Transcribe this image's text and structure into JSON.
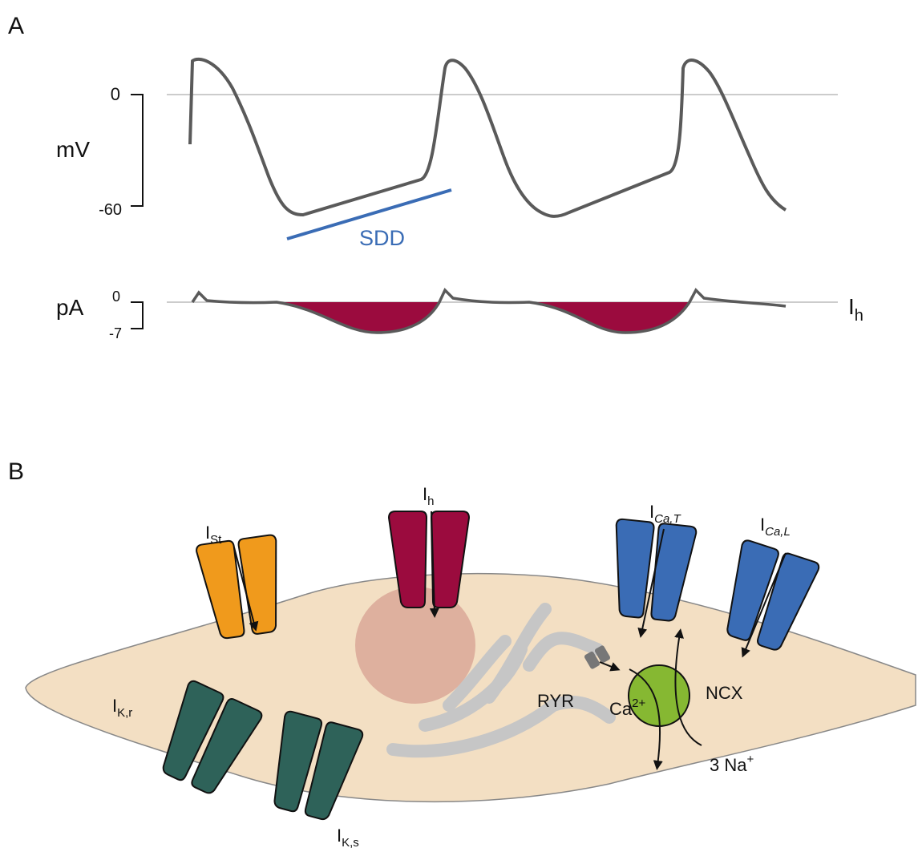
{
  "panel_a": {
    "label": "A",
    "voltage": {
      "scale_top": "0",
      "unit": "mV",
      "scale_bottom": "-60",
      "annotation": "SDD"
    },
    "current": {
      "scale_top": "0",
      "unit": "pA",
      "scale_bottom": "-7",
      "trace_label": {
        "base": "I",
        "sub": "h"
      }
    }
  },
  "panel_b": {
    "label": "B",
    "channels": [
      {
        "base": "I",
        "sub": "St"
      },
      {
        "base": "I",
        "sub": "h"
      },
      {
        "base": "I",
        "sub": "Ca,T"
      },
      {
        "base": "I",
        "sub": "Ca,L"
      },
      {
        "base": "I",
        "sub": "K,r"
      },
      {
        "base": "I",
        "sub": "K,s"
      }
    ],
    "ryr": "RYR",
    "calcium": {
      "base": "Ca",
      "sup": "2+"
    },
    "ncx": "NCX",
    "sodium": {
      "base": "3 Na",
      "sup": "+"
    }
  }
}
